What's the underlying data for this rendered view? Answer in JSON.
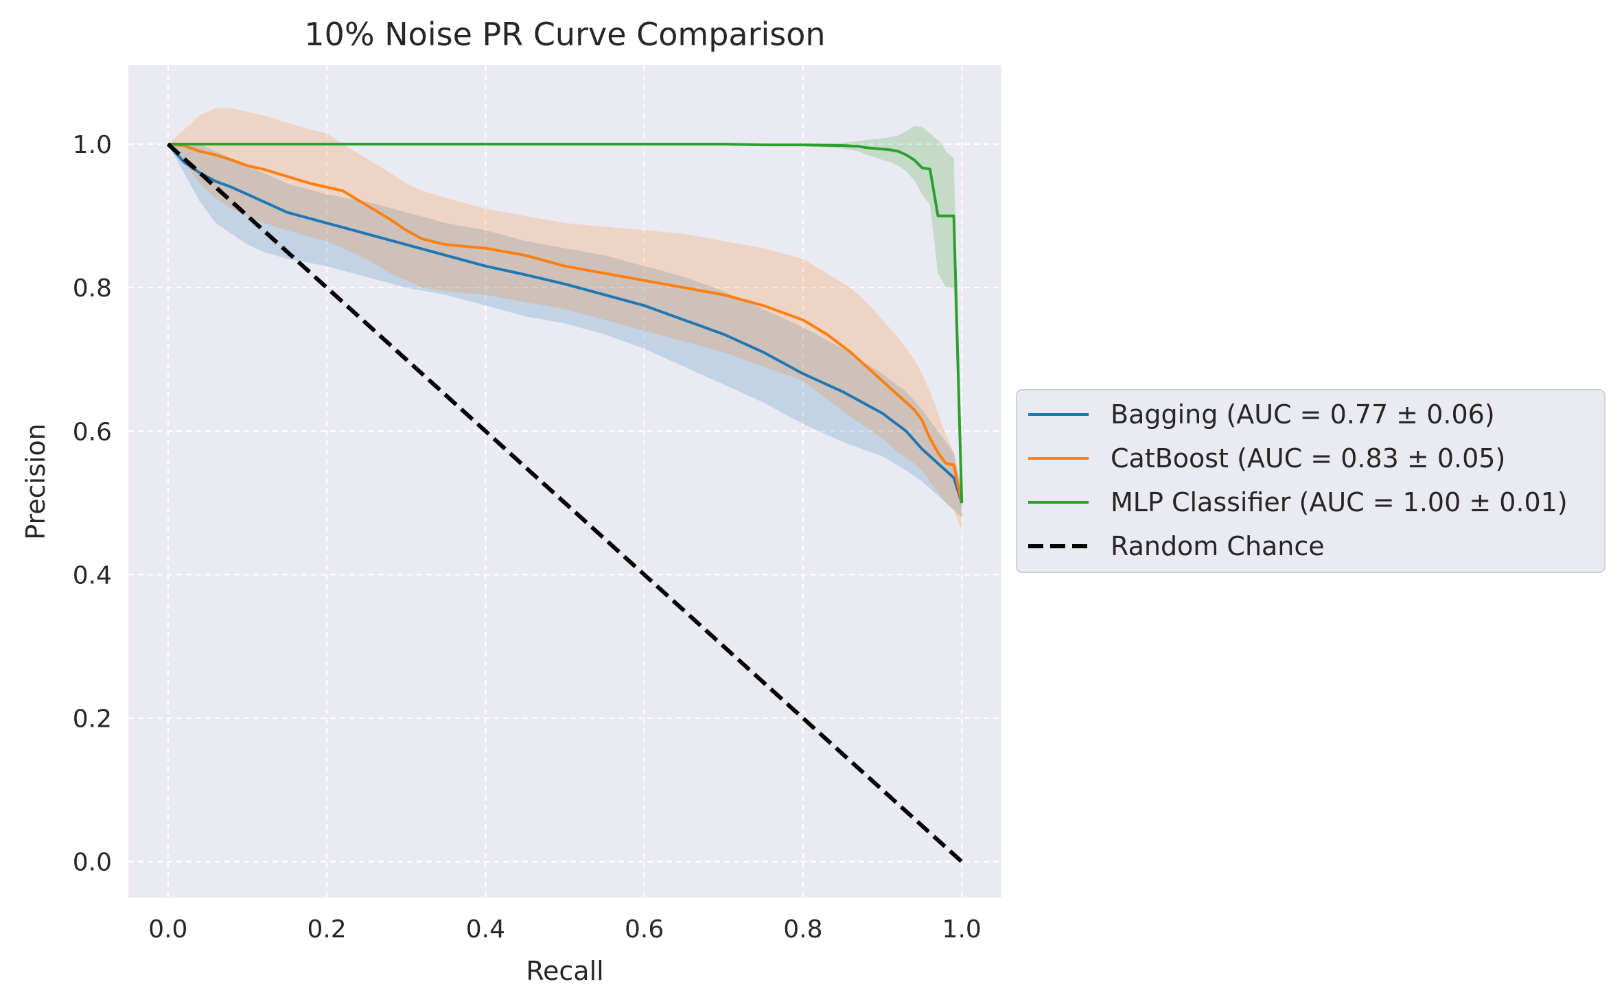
{
  "chart_data": {
    "type": "line",
    "title": "10% Noise PR Curve Comparison",
    "xlabel": "Recall",
    "ylabel": "Precision",
    "xlim": [
      -0.05,
      1.05
    ],
    "ylim": [
      -0.05,
      1.11
    ],
    "xticks": [
      0.0,
      0.2,
      0.4,
      0.6,
      0.8,
      1.0
    ],
    "xtick_labels": [
      "0.0",
      "0.2",
      "0.4",
      "0.6",
      "0.8",
      "1.0"
    ],
    "yticks": [
      0.0,
      0.2,
      0.4,
      0.6,
      0.8,
      1.0
    ],
    "ytick_labels": [
      "0.0",
      "0.2",
      "0.4",
      "0.6",
      "0.8",
      "1.0"
    ],
    "grid": true,
    "legend_position": "outside-right",
    "series": [
      {
        "name": "Bagging (AUC = 0.77 ± 0.06)",
        "color": "#1f77b4",
        "x": [
          0.0,
          0.02,
          0.04,
          0.06,
          0.08,
          0.1,
          0.12,
          0.15,
          0.2,
          0.25,
          0.3,
          0.35,
          0.4,
          0.45,
          0.5,
          0.55,
          0.6,
          0.65,
          0.7,
          0.75,
          0.8,
          0.85,
          0.9,
          0.93,
          0.95,
          0.97,
          0.98,
          0.99,
          1.0
        ],
        "y": [
          1.0,
          0.975,
          0.96,
          0.948,
          0.94,
          0.93,
          0.92,
          0.905,
          0.89,
          0.875,
          0.86,
          0.845,
          0.83,
          0.818,
          0.805,
          0.79,
          0.775,
          0.755,
          0.735,
          0.71,
          0.68,
          0.655,
          0.625,
          0.6,
          0.575,
          0.555,
          0.545,
          0.535,
          0.5
        ],
        "upper": [
          1.0,
          1.0,
          1.0,
          0.99,
          0.98,
          0.97,
          0.96,
          0.945,
          0.93,
          0.92,
          0.905,
          0.89,
          0.88,
          0.865,
          0.855,
          0.845,
          0.83,
          0.815,
          0.795,
          0.77,
          0.745,
          0.715,
          0.68,
          0.655,
          0.63,
          0.6,
          0.585,
          0.57,
          0.52
        ],
        "lower": [
          1.0,
          0.96,
          0.92,
          0.89,
          0.875,
          0.86,
          0.85,
          0.84,
          0.83,
          0.815,
          0.8,
          0.79,
          0.775,
          0.76,
          0.75,
          0.735,
          0.715,
          0.69,
          0.665,
          0.64,
          0.61,
          0.585,
          0.565,
          0.545,
          0.53,
          0.51,
          0.5,
          0.49,
          0.48
        ]
      },
      {
        "name": "CatBoost (AUC = 0.83 ± 0.05)",
        "color": "#ff7f0e",
        "x": [
          0.0,
          0.02,
          0.04,
          0.06,
          0.08,
          0.1,
          0.12,
          0.15,
          0.18,
          0.2,
          0.22,
          0.25,
          0.28,
          0.3,
          0.32,
          0.35,
          0.4,
          0.45,
          0.5,
          0.55,
          0.6,
          0.65,
          0.7,
          0.75,
          0.8,
          0.83,
          0.86,
          0.88,
          0.9,
          0.92,
          0.94,
          0.95,
          0.96,
          0.97,
          0.98,
          0.99,
          1.0
        ],
        "y": [
          1.0,
          0.998,
          0.99,
          0.985,
          0.978,
          0.97,
          0.965,
          0.955,
          0.945,
          0.94,
          0.935,
          0.915,
          0.895,
          0.88,
          0.868,
          0.86,
          0.855,
          0.845,
          0.83,
          0.82,
          0.81,
          0.8,
          0.79,
          0.775,
          0.755,
          0.735,
          0.71,
          0.69,
          0.67,
          0.65,
          0.63,
          0.615,
          0.59,
          0.57,
          0.555,
          0.553,
          0.5
        ],
        "upper": [
          1.0,
          1.02,
          1.04,
          1.05,
          1.05,
          1.045,
          1.04,
          1.03,
          1.02,
          1.015,
          1.0,
          0.98,
          0.96,
          0.945,
          0.935,
          0.925,
          0.91,
          0.9,
          0.89,
          0.885,
          0.88,
          0.875,
          0.865,
          0.855,
          0.84,
          0.82,
          0.8,
          0.78,
          0.755,
          0.73,
          0.7,
          0.68,
          0.655,
          0.625,
          0.595,
          0.57,
          0.51
        ],
        "lower": [
          1.0,
          0.975,
          0.945,
          0.925,
          0.91,
          0.9,
          0.89,
          0.88,
          0.87,
          0.865,
          0.855,
          0.84,
          0.82,
          0.81,
          0.8,
          0.795,
          0.79,
          0.78,
          0.77,
          0.755,
          0.74,
          0.725,
          0.71,
          0.69,
          0.67,
          0.645,
          0.62,
          0.605,
          0.59,
          0.57,
          0.555,
          0.545,
          0.53,
          0.515,
          0.5,
          0.49,
          0.46
        ]
      },
      {
        "name": "MLP Classifier (AUC = 1.00 ± 0.01)",
        "color": "#2ca02c",
        "x": [
          0.0,
          0.2,
          0.4,
          0.6,
          0.7,
          0.75,
          0.8,
          0.85,
          0.87,
          0.88,
          0.89,
          0.9,
          0.91,
          0.92,
          0.93,
          0.94,
          0.95,
          0.96,
          0.97,
          0.975,
          0.98,
          0.99,
          1.0
        ],
        "y": [
          1.0,
          1.0,
          1.0,
          1.0,
          1.0,
          0.999,
          0.999,
          0.998,
          0.997,
          0.995,
          0.994,
          0.993,
          0.992,
          0.99,
          0.985,
          0.978,
          0.967,
          0.965,
          0.9,
          0.9,
          0.9,
          0.9,
          0.5
        ],
        "upper": [
          1.0,
          1.0,
          1.0,
          1.0,
          1.0,
          1.0,
          1.0,
          1.002,
          1.004,
          1.006,
          1.007,
          1.008,
          1.01,
          1.012,
          1.018,
          1.025,
          1.024,
          1.015,
          1.005,
          1.0,
          0.99,
          0.98,
          0.52
        ],
        "lower": [
          1.0,
          1.0,
          1.0,
          1.0,
          1.0,
          0.998,
          0.997,
          0.994,
          0.99,
          0.985,
          0.982,
          0.978,
          0.975,
          0.97,
          0.962,
          0.95,
          0.93,
          0.915,
          0.82,
          0.81,
          0.8,
          0.8,
          0.48
        ]
      },
      {
        "name": "Random Chance",
        "color": "#000000",
        "dashed": true,
        "x": [
          0.0,
          1.0
        ],
        "y": [
          1.0,
          0.0
        ]
      }
    ]
  }
}
